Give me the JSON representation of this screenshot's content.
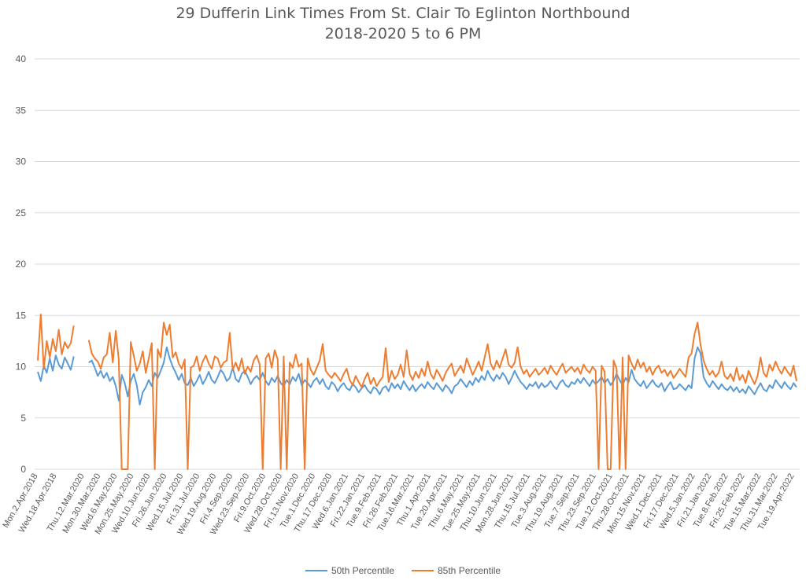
{
  "chart_data": {
    "type": "line",
    "title": "29 Dufferin Link Times From St. Clair To Eglinton Northbound",
    "subtitle": "2018-2020 5 to 6 PM",
    "ylim": [
      0,
      40
    ],
    "yticks": [
      0,
      5,
      10,
      15,
      20,
      25,
      30,
      35,
      40
    ],
    "grid": true,
    "legend_position": "bottom",
    "x_tick_labels": [
      "Mon.2.Apr.2018",
      "Wed.18.Apr.2018",
      "Thu.12.Mar.2020",
      "Mon.30.Mar.2020",
      "Wed.6.May.2020",
      "Mon.25.May.2020",
      "Wed.10.Jun.2020",
      "Fri.26.Jun.2020",
      "Wed.15.Jul.2020",
      "Fri.31.Jul.2020",
      "Wed.19.Aug.2020",
      "Fri.4.Sep.2020",
      "Wed.23.Sep.2020",
      "Fri.9.Oct.2020",
      "Wed.28.Oct.2020",
      "Fri.13.Nov.2020",
      "Tue.1.Dec.2020",
      "Thu.17.Dec.2020",
      "Wed.6.Jan.2021",
      "Fri.22.Jan.2021",
      "Tue.9.Feb.2021",
      "Fri.26.Feb.2021",
      "Tue.16.Mar.2021",
      "Thu.1.Apr.2021",
      "Tue.20.Apr.2021",
      "Thu.6.May.2021",
      "Tue.25.May.2021",
      "Thu.10.Jun.2021",
      "Mon.28.Jun.2021",
      "Thu.15.Jul.2021",
      "Tue.3.Aug.2021",
      "Thu.19.Aug.2021",
      "Tue.7.Sep.2021",
      "Thu.23.Sep.2021",
      "Tue.12.Oct.2021",
      "Thu.28.Oct.2021",
      "Mon.15.Nov.2021",
      "Wed.1.Dec.2021",
      "Fri.17.Dec.2021",
      "Wed.5.Jan.2022",
      "Fri.21.Jan.2022",
      "Tue.8.Feb.2022",
      "Fri.25.Feb.2022",
      "Tue.15.Mar.2022",
      "Thu.31.Mar.2022",
      "Tue.19.Apr.2022"
    ],
    "series": [
      {
        "name": "50th Percentile",
        "color": "#5B9BD5",
        "values": [
          9.5,
          8.6,
          10.1,
          9.4,
          10.8,
          9.6,
          11.1,
          10.2,
          9.8,
          10.9,
          10.3,
          9.7,
          11.0,
          null,
          null,
          null,
          null,
          10.4,
          10.6,
          9.9,
          9.1,
          9.6,
          8.9,
          9.4,
          8.6,
          9.0,
          8.1,
          6.7,
          9.2,
          8.4,
          7.1,
          8.6,
          9.3,
          8.2,
          6.3,
          7.5,
          8.0,
          8.7,
          8.1,
          9.4,
          8.9,
          9.6,
          10.4,
          11.9,
          10.8,
          10.0,
          9.4,
          8.7,
          9.3,
          8.4,
          8.2,
          8.9,
          8.1,
          8.6,
          9.2,
          8.3,
          8.8,
          9.5,
          8.7,
          8.4,
          9.0,
          9.7,
          9.3,
          8.6,
          8.9,
          9.9,
          8.8,
          8.5,
          9.3,
          9.6,
          9.0,
          8.3,
          8.8,
          9.1,
          8.7,
          9.4,
          8.6,
          8.2,
          8.9,
          8.5,
          9.1,
          8.4,
          8.1,
          8.7,
          8.3,
          9.0,
          8.6,
          9.3,
          8.2,
          8.7,
          8.4,
          8.0,
          8.6,
          8.9,
          8.3,
          8.8,
          8.1,
          7.8,
          8.5,
          8.2,
          7.6,
          8.1,
          8.4,
          7.9,
          7.7,
          8.3,
          8.0,
          7.5,
          7.9,
          8.2,
          7.7,
          7.4,
          8.0,
          7.8,
          7.3,
          7.9,
          8.1,
          7.6,
          8.4,
          7.9,
          8.3,
          7.8,
          8.6,
          8.1,
          7.7,
          8.2,
          7.6,
          8.0,
          8.3,
          7.9,
          8.5,
          8.1,
          7.8,
          8.4,
          8.0,
          7.6,
          8.2,
          7.9,
          7.4,
          8.1,
          8.3,
          8.8,
          8.4,
          8.0,
          8.6,
          8.2,
          8.9,
          8.5,
          9.1,
          8.7,
          9.6,
          9.0,
          8.6,
          9.2,
          8.8,
          9.4,
          9.0,
          8.3,
          8.9,
          9.6,
          9.0,
          8.5,
          8.2,
          7.8,
          8.3,
          8.1,
          8.5,
          7.9,
          8.4,
          8.0,
          8.2,
          8.6,
          8.1,
          7.8,
          8.4,
          8.7,
          8.2,
          8.0,
          8.5,
          8.3,
          8.8,
          8.4,
          8.9,
          8.5,
          8.1,
          8.7,
          8.3,
          8.6,
          9.0,
          8.4,
          8.8,
          8.2,
          8.6,
          9.3,
          8.7,
          8.2,
          8.9,
          8.5,
          9.7,
          8.8,
          8.4,
          8.1,
          8.6,
          7.9,
          8.3,
          8.7,
          8.2,
          8.0,
          8.4,
          7.6,
          8.1,
          8.5,
          7.8,
          7.9,
          8.3,
          8.0,
          7.7,
          8.2,
          7.9,
          10.8,
          11.9,
          11.3,
          9.0,
          8.4,
          8.0,
          8.6,
          8.2,
          7.8,
          8.3,
          7.9,
          7.7,
          8.1,
          7.6,
          8.0,
          7.5,
          7.8,
          7.4,
          8.1,
          7.7,
          7.3,
          7.9,
          8.4,
          7.8,
          7.6,
          8.2,
          7.9,
          8.7,
          8.3,
          7.9,
          8.5,
          8.1,
          7.8,
          8.4,
          8.0
        ]
      },
      {
        "name": "85th Percentile",
        "color": "#ED7D31",
        "values": [
          10.6,
          15.1,
          9.8,
          12.5,
          10.9,
          12.7,
          11.5,
          13.6,
          11.2,
          12.4,
          11.8,
          12.3,
          14.0,
          null,
          null,
          null,
          null,
          12.6,
          11.3,
          10.8,
          10.5,
          9.8,
          10.9,
          11.2,
          13.3,
          10.4,
          13.5,
          10.7,
          0,
          0,
          0,
          12.4,
          11.1,
          9.6,
          10.3,
          11.5,
          9.4,
          10.8,
          12.3,
          0,
          11.7,
          10.9,
          14.3,
          13.1,
          14.1,
          10.9,
          11.4,
          10.3,
          9.8,
          10.7,
          0,
          9.9,
          10.1,
          11.0,
          9.6,
          10.5,
          11.1,
          10.3,
          9.8,
          11.0,
          10.8,
          9.9,
          10.4,
          10.6,
          13.3,
          9.7,
          10.4,
          9.6,
          10.8,
          9.3,
          10.0,
          9.5,
          10.6,
          11.1,
          10.2,
          0,
          10.8,
          11.3,
          9.9,
          11.6,
          10.7,
          0,
          11.0,
          0,
          10.4,
          9.9,
          11.2,
          10.0,
          10.3,
          0,
          10.8,
          9.7,
          9.2,
          9.9,
          10.6,
          12.2,
          9.6,
          9.2,
          8.9,
          9.4,
          9.0,
          8.6,
          9.3,
          9.8,
          8.7,
          8.2,
          9.1,
          8.5,
          8.0,
          8.8,
          9.4,
          8.3,
          8.9,
          8.1,
          8.6,
          9.0,
          11.8,
          8.5,
          9.6,
          8.8,
          9.2,
          10.2,
          9.0,
          11.6,
          9.3,
          8.7,
          9.5,
          8.9,
          9.8,
          9.1,
          10.5,
          9.3,
          8.8,
          9.7,
          9.2,
          8.6,
          9.4,
          9.9,
          10.3,
          9.1,
          9.6,
          10.1,
          9.4,
          10.8,
          10.0,
          9.2,
          9.8,
          10.5,
          9.6,
          10.9,
          12.2,
          10.3,
          9.7,
          10.6,
          9.9,
          10.8,
          11.7,
          10.2,
          9.9,
          10.4,
          11.9,
          10.0,
          9.3,
          9.7,
          9.0,
          9.4,
          9.8,
          9.2,
          9.5,
          9.9,
          9.3,
          10.1,
          9.6,
          9.2,
          9.8,
          10.3,
          9.4,
          9.7,
          10.0,
          9.5,
          9.9,
          9.3,
          10.2,
          9.7,
          9.4,
          10.0,
          9.6,
          0,
          10.1,
          9.5,
          0,
          0,
          10.6,
          9.8,
          0,
          10.9,
          0,
          11.1,
          10.3,
          9.7,
          10.7,
          9.9,
          10.4,
          9.5,
          10.0,
          9.2,
          9.8,
          10.1,
          9.4,
          9.7,
          9.1,
          9.6,
          8.9,
          9.3,
          9.8,
          9.4,
          9.0,
          10.9,
          11.3,
          13.2,
          14.3,
          12.1,
          10.6,
          9.8,
          9.2,
          9.6,
          9.0,
          9.4,
          10.5,
          9.1,
          8.8,
          9.3,
          8.6,
          9.9,
          8.7,
          9.2,
          8.4,
          9.6,
          8.9,
          8.3,
          9.1,
          10.9,
          9.4,
          9.0,
          10.2,
          9.6,
          10.5,
          9.8,
          9.3,
          10.0,
          9.5,
          9.1,
          10.1,
          8.6
        ]
      }
    ]
  }
}
